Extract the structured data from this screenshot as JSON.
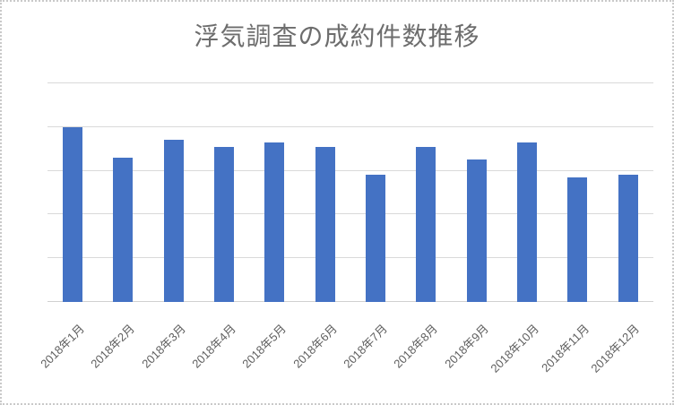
{
  "chart_data": {
    "type": "bar",
    "title": "浮気調査の成約件数推移",
    "categories": [
      "2018年1月",
      "2018年2月",
      "2018年3月",
      "2018年4月",
      "2018年5月",
      "2018年6月",
      "2018年7月",
      "2018年8月",
      "2018年9月",
      "2018年10月",
      "2018年11月",
      "2018年12月"
    ],
    "values": [
      40,
      33,
      37,
      35.5,
      36.5,
      35.5,
      29,
      35.5,
      32.5,
      36.5,
      28.5,
      29
    ],
    "xlabel": "",
    "ylabel": "",
    "ylim": [
      0,
      50
    ],
    "gridline_interval": 10,
    "grid": true,
    "legend": "none",
    "y_axis_tick_labels_visible": false,
    "x_tick_label_rotation_deg": -45
  },
  "colors": {
    "bar": "#4472C4",
    "gridline": "#D9D9D9",
    "axis_line": "#D0D0D0",
    "title_text": "#6D6D6D",
    "tick_text": "#5E5E5E",
    "frame_border": "#C9C9C9",
    "background": "#FFFFFF"
  }
}
